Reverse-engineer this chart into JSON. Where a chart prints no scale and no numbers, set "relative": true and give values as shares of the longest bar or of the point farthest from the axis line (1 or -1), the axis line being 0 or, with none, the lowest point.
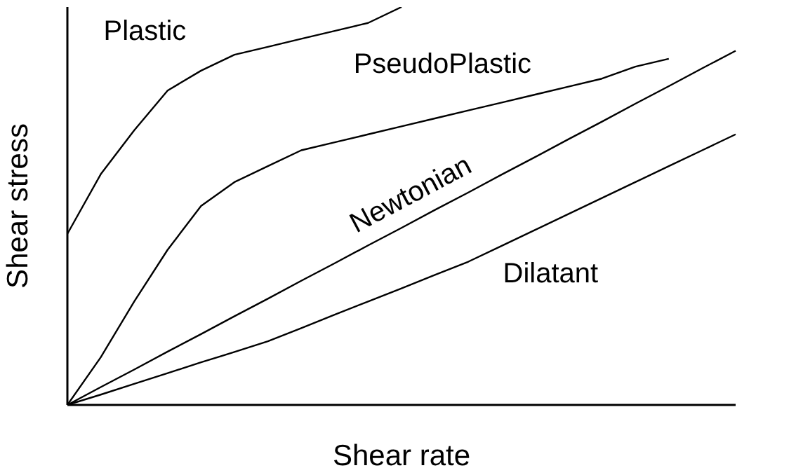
{
  "chart_data": {
    "type": "line",
    "relative": true,
    "xlabel": "Shear rate",
    "ylabel": "Shear stress",
    "grid": false,
    "legend": false,
    "marker": "none",
    "line_style": "solid",
    "categories": [
      null,
      null,
      null,
      null,
      null,
      null,
      null,
      null,
      null,
      null,
      null,
      null,
      null,
      null,
      null,
      null,
      null,
      null,
      null,
      null,
      null
    ],
    "series": [
      {
        "name": "Plastic",
        "color": "#000000",
        "values": [
          0.43,
          0.58,
          0.69,
          0.79,
          0.84,
          0.88,
          0.9,
          0.92,
          0.94,
          0.96,
          1,
          null,
          null,
          null,
          null,
          null,
          null,
          null,
          null,
          null,
          null
        ]
      },
      {
        "name": "PseudoPlastic",
        "color": "#000000",
        "values": [
          0,
          0.12,
          0.26,
          0.39,
          0.5,
          0.56,
          0.6,
          0.64,
          0.66,
          0.68,
          0.7,
          0.72,
          0.74,
          0.76,
          0.78,
          0.8,
          0.82,
          0.85,
          0.87,
          null,
          null
        ]
      },
      {
        "name": "Newtonian",
        "color": "#000000",
        "values": [
          0,
          0.045,
          0.089,
          0.134,
          0.178,
          0.223,
          0.267,
          0.312,
          0.356,
          0.401,
          0.445,
          0.49,
          0.534,
          0.579,
          0.623,
          0.668,
          0.712,
          0.757,
          0.801,
          0.846,
          0.89
        ]
      },
      {
        "name": "Dilatant",
        "color": "#000000",
        "values": [
          0,
          0.026,
          0.053,
          0.08,
          0.107,
          0.133,
          0.16,
          0.193,
          0.227,
          0.26,
          0.293,
          0.327,
          0.36,
          0.4,
          0.44,
          0.48,
          0.52,
          0.56,
          0.6,
          0.64,
          0.68
        ]
      }
    ]
  }
}
